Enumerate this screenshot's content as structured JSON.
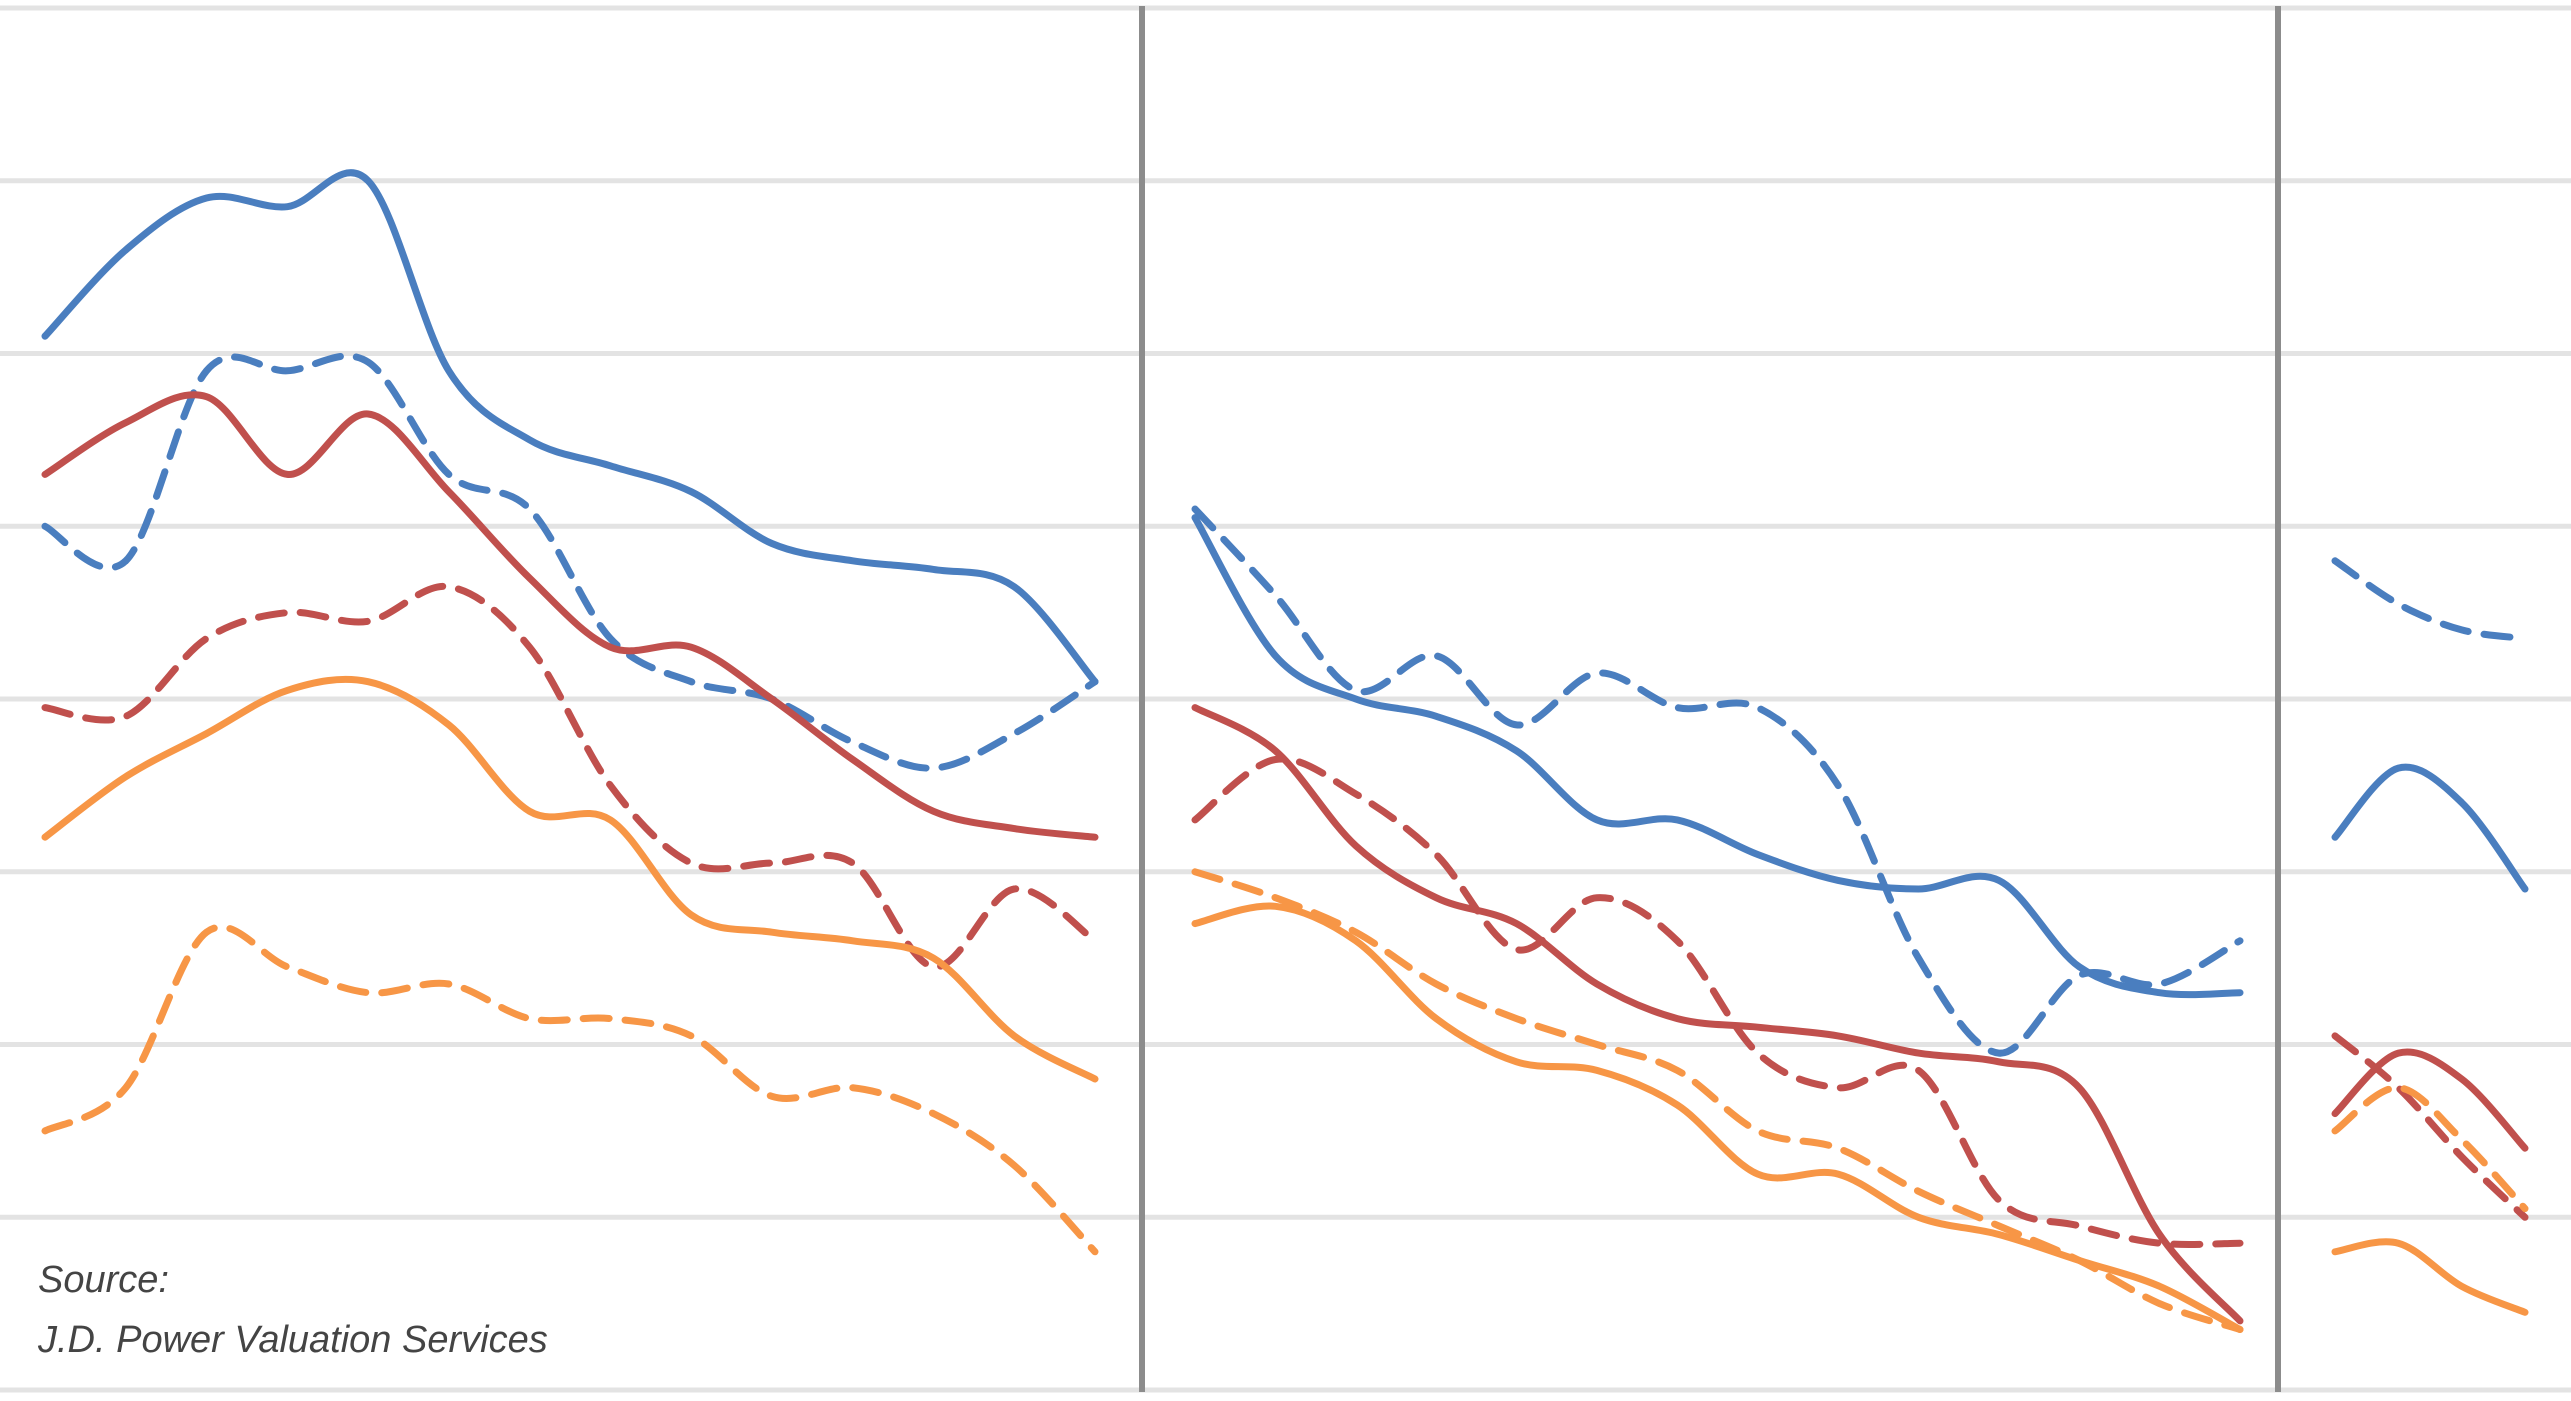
{
  "chart_data": {
    "type": "line",
    "title": "",
    "xlabel": "",
    "ylabel": "",
    "grid": true,
    "ylim": [
      0,
      8
    ],
    "source": {
      "line1": "Source:",
      "line2": "J.D. Power Valuation Services"
    },
    "panels": [
      {
        "x": [
          0,
          1,
          2,
          3,
          4,
          5,
          6,
          7,
          8,
          9,
          10,
          11,
          12,
          13
        ],
        "series": [
          {
            "color": "#4a7ebf",
            "style": "solid",
            "values": [
              6.1,
              6.6,
              6.9,
              6.85,
              7.0,
              5.9,
              5.5,
              5.35,
              5.2,
              4.9,
              4.8,
              4.75,
              4.65,
              4.1
            ]
          },
          {
            "color": "#4a7ebf",
            "style": "dashed",
            "values": [
              5.0,
              4.8,
              5.9,
              5.9,
              5.95,
              5.3,
              5.1,
              4.35,
              4.1,
              4.0,
              3.75,
              3.6,
              3.8,
              4.1
            ]
          },
          {
            "color": "#c0504d",
            "style": "solid",
            "values": [
              5.3,
              5.6,
              5.75,
              5.3,
              5.65,
              5.2,
              4.7,
              4.3,
              4.3,
              4.0,
              3.65,
              3.35,
              3.25,
              3.2
            ]
          },
          {
            "color": "#c0504d",
            "style": "dashed",
            "values": [
              3.95,
              3.9,
              4.35,
              4.5,
              4.45,
              4.65,
              4.3,
              3.5,
              3.05,
              3.05,
              3.05,
              2.45,
              2.9,
              2.6
            ]
          },
          {
            "color": "#f79646",
            "style": "solid",
            "values": [
              3.2,
              3.55,
              3.8,
              4.05,
              4.1,
              3.85,
              3.35,
              3.3,
              2.75,
              2.65,
              2.6,
              2.5,
              2.05,
              1.8
            ]
          },
          {
            "color": "#f79646",
            "style": "dashed",
            "values": [
              1.5,
              1.75,
              2.65,
              2.45,
              2.3,
              2.35,
              2.15,
              2.15,
              2.05,
              1.7,
              1.75,
              1.6,
              1.3,
              0.8
            ]
          }
        ]
      },
      {
        "x": [
          0,
          1,
          2,
          3,
          4,
          5,
          6,
          7,
          8,
          9,
          10,
          11,
          12,
          13
        ],
        "series": [
          {
            "color": "#4a7ebf",
            "style": "solid",
            "values": [
              5.05,
              4.25,
              4.0,
              3.9,
              3.7,
              3.3,
              3.3,
              3.1,
              2.95,
              2.9,
              2.95,
              2.45,
              2.3,
              2.3
            ]
          },
          {
            "color": "#4a7ebf",
            "style": "dashed",
            "values": [
              5.1,
              4.6,
              4.05,
              4.25,
              3.85,
              4.15,
              3.95,
              3.95,
              3.5,
              2.5,
              1.95,
              2.4,
              2.35,
              2.6
            ]
          },
          {
            "color": "#c0504d",
            "style": "solid",
            "values": [
              3.95,
              3.7,
              3.15,
              2.85,
              2.7,
              2.35,
              2.15,
              2.1,
              2.05,
              1.95,
              1.9,
              1.75,
              0.9,
              0.4
            ]
          },
          {
            "color": "#c0504d",
            "style": "dashed",
            "values": [
              3.3,
              3.65,
              3.45,
              3.1,
              2.55,
              2.85,
              2.6,
              1.95,
              1.75,
              1.85,
              1.1,
              0.95,
              0.85,
              0.85
            ]
          },
          {
            "color": "#f79646",
            "style": "solid",
            "values": [
              2.7,
              2.8,
              2.6,
              2.15,
              1.9,
              1.85,
              1.65,
              1.25,
              1.25,
              1.0,
              0.9,
              0.75,
              0.6,
              0.35
            ]
          },
          {
            "color": "#f79646",
            "style": "dashed",
            "values": [
              3.0,
              2.85,
              2.65,
              2.35,
              2.15,
              2.0,
              1.85,
              1.5,
              1.4,
              1.15,
              0.95,
              0.75,
              0.5,
              0.35
            ]
          }
        ]
      },
      {
        "x": [
          0,
          1,
          2,
          3
        ],
        "series": [
          {
            "color": "#4a7ebf",
            "style": "dashed",
            "values": [
              4.8,
              4.55,
              4.4,
              4.35
            ]
          },
          {
            "color": "#4a7ebf",
            "style": "solid",
            "values": [
              3.2,
              3.6,
              3.4,
              2.9
            ]
          },
          {
            "color": "#c0504d",
            "style": "dashed",
            "values": [
              2.05,
              1.75,
              1.35,
              1.0
            ]
          },
          {
            "color": "#c0504d",
            "style": "solid",
            "values": [
              1.6,
              1.95,
              1.8,
              1.4
            ]
          },
          {
            "color": "#f79646",
            "style": "dashed",
            "values": [
              1.5,
              1.75,
              1.45,
              1.05
            ]
          },
          {
            "color": "#f79646",
            "style": "solid",
            "values": [
              0.8,
              0.85,
              0.6,
              0.45
            ]
          }
        ]
      }
    ]
  }
}
